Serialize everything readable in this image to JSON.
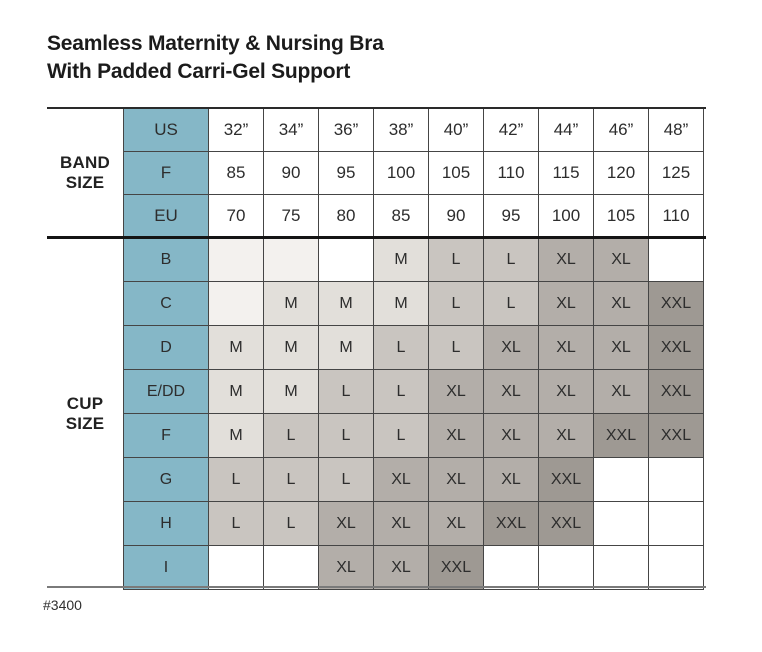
{
  "title": {
    "line1": "Seamless Maternity & Nursing Bra",
    "line2": "With Padded Carri-Gel Support"
  },
  "footer": {
    "product_code": "#3400"
  },
  "colors": {
    "teal": "#85b7c7",
    "m": "#e2dfda",
    "l": "#c9c5c0",
    "xl": "#b3aea9",
    "xxl": "#9e9993",
    "faint": "#f3f1ee",
    "grid": "#454545",
    "thick_rule": "#141414"
  },
  "band_section": {
    "label_line1": "BAND",
    "label_line2": "SIZE"
  },
  "cup_section": {
    "label_line1": "CUP",
    "label_line2": "SIZE"
  },
  "chart_data": {
    "type": "table",
    "title": "Seamless Maternity & Nursing Bra With Padded Carri-Gel Support",
    "band_columns": [
      "32”",
      "34”",
      "36”",
      "38”",
      "40”",
      "42”",
      "44”",
      "46”",
      "48”"
    ],
    "band_rows": [
      {
        "label": "US",
        "values": [
          "32”",
          "34”",
          "36”",
          "38”",
          "40”",
          "42”",
          "44”",
          "46”",
          "48”"
        ]
      },
      {
        "label": "F",
        "values": [
          "85",
          "90",
          "95",
          "100",
          "105",
          "110",
          "115",
          "120",
          "125"
        ]
      },
      {
        "label": "EU",
        "values": [
          "70",
          "75",
          "80",
          "85",
          "90",
          "95",
          "100",
          "105",
          "110"
        ]
      }
    ],
    "cup_rows": [
      {
        "label": "B",
        "values": [
          "",
          "",
          "",
          "M",
          "L",
          "L",
          "XL",
          "XL",
          ""
        ],
        "tinted_empty_cols": [
          0,
          1
        ]
      },
      {
        "label": "C",
        "values": [
          "",
          "M",
          "M",
          "M",
          "L",
          "L",
          "XL",
          "XL",
          "XXL"
        ],
        "tinted_empty_cols": [
          0
        ]
      },
      {
        "label": "D",
        "values": [
          "M",
          "M",
          "M",
          "L",
          "L",
          "XL",
          "XL",
          "XL",
          "XXL"
        ],
        "tinted_empty_cols": []
      },
      {
        "label": "E/DD",
        "values": [
          "M",
          "M",
          "L",
          "L",
          "XL",
          "XL",
          "XL",
          "XL",
          "XXL"
        ],
        "tinted_empty_cols": []
      },
      {
        "label": "F",
        "values": [
          "M",
          "L",
          "L",
          "L",
          "XL",
          "XL",
          "XL",
          "XXL",
          "XXL"
        ],
        "tinted_empty_cols": []
      },
      {
        "label": "G",
        "values": [
          "L",
          "L",
          "L",
          "XL",
          "XL",
          "XL",
          "XXL",
          "",
          ""
        ],
        "tinted_empty_cols": []
      },
      {
        "label": "H",
        "values": [
          "L",
          "L",
          "XL",
          "XL",
          "XL",
          "XXL",
          "XXL",
          "",
          ""
        ],
        "tinted_empty_cols": []
      },
      {
        "label": "I",
        "values": [
          "",
          "",
          "XL",
          "XL",
          "XXL",
          "",
          "",
          "",
          ""
        ],
        "tinted_empty_cols": []
      }
    ]
  }
}
